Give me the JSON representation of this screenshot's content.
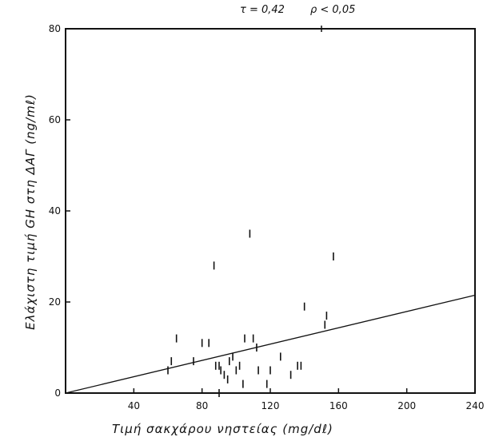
{
  "chart_data": {
    "type": "scatter",
    "annotations": [
      "τ = 0,42",
      "ρ < 0,05"
    ],
    "xlabel": "Τιμή σακχάρου νηστείας (mg/dℓ)",
    "ylabel": "Ελάχιστη τιμή GH στη ΔΑΓ (ng/mℓ)",
    "xlim": [
      0,
      240
    ],
    "ylim": [
      0,
      80
    ],
    "xticks": [
      40,
      80,
      120,
      160,
      200,
      240
    ],
    "yticks": [
      0,
      20,
      40,
      60,
      80
    ],
    "grid": false,
    "points": [
      {
        "x": 60,
        "y": 5
      },
      {
        "x": 62,
        "y": 7
      },
      {
        "x": 65,
        "y": 12
      },
      {
        "x": 75,
        "y": 7
      },
      {
        "x": 80,
        "y": 11
      },
      {
        "x": 84,
        "y": 11
      },
      {
        "x": 88,
        "y": 6
      },
      {
        "x": 90,
        "y": 6
      },
      {
        "x": 91,
        "y": 5
      },
      {
        "x": 93,
        "y": 4
      },
      {
        "x": 95,
        "y": 3
      },
      {
        "x": 96,
        "y": 7
      },
      {
        "x": 98,
        "y": 8
      },
      {
        "x": 100,
        "y": 5
      },
      {
        "x": 102,
        "y": 6
      },
      {
        "x": 105,
        "y": 12
      },
      {
        "x": 110,
        "y": 12
      },
      {
        "x": 112,
        "y": 10
      },
      {
        "x": 113,
        "y": 5
      },
      {
        "x": 118,
        "y": 2
      },
      {
        "x": 120,
        "y": 5
      },
      {
        "x": 126,
        "y": 8
      },
      {
        "x": 132,
        "y": 4
      },
      {
        "x": 136,
        "y": 6
      },
      {
        "x": 138,
        "y": 6
      },
      {
        "x": 140,
        "y": 19
      },
      {
        "x": 152,
        "y": 15
      },
      {
        "x": 153,
        "y": 17
      },
      {
        "x": 157,
        "y": 30
      },
      {
        "x": 87,
        "y": 28
      },
      {
        "x": 108,
        "y": 35
      },
      {
        "x": 90,
        "y": 0
      },
      {
        "x": 104,
        "y": 2
      }
    ],
    "regression_line": [
      {
        "x": 0,
        "y": 0
      },
      {
        "x": 240,
        "y": 21.5
      }
    ]
  }
}
